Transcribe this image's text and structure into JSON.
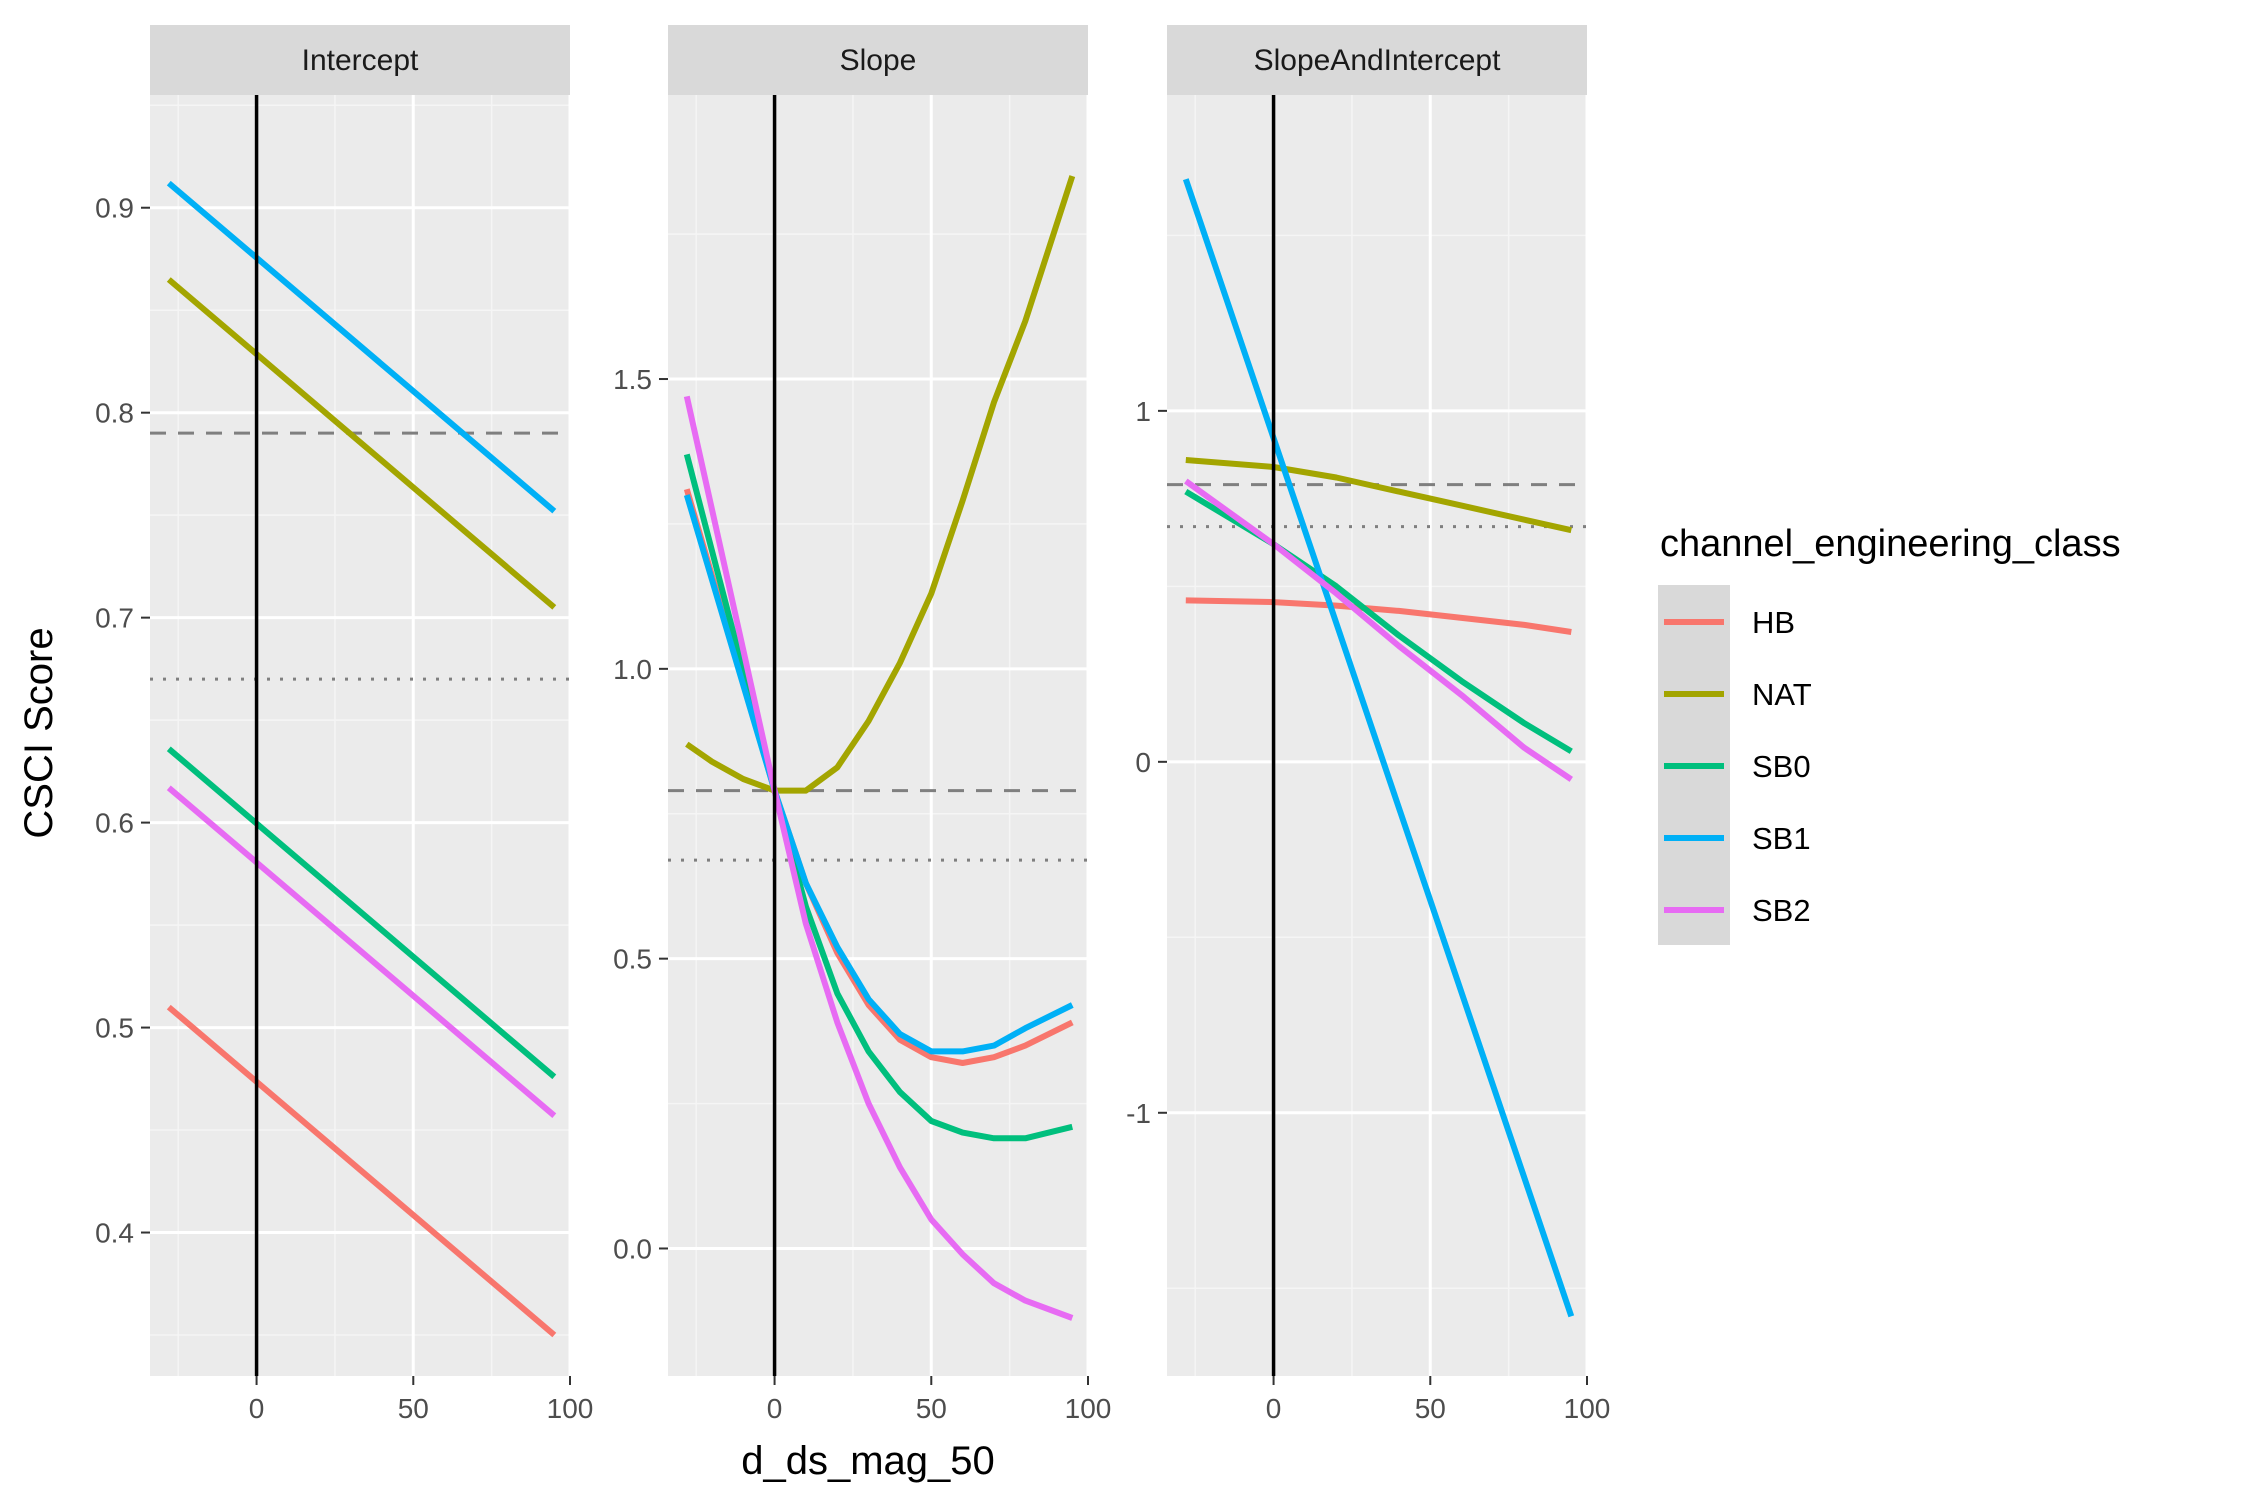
{
  "chart_data": {
    "type": "line",
    "facet_variable": "model",
    "xlabel": "d_ds_mag_50",
    "ylabel": "CSCI Score",
    "legend": {
      "title": "channel_engineering_class",
      "placement": "right",
      "entries": [
        {
          "name": "HB",
          "color": "#F8766D"
        },
        {
          "name": "NAT",
          "color": "#A3A500"
        },
        {
          "name": "SB0",
          "color": "#00BF7D"
        },
        {
          "name": "SB1",
          "color": "#00B0F6"
        },
        {
          "name": "SB2",
          "color": "#E76BF3"
        }
      ]
    },
    "reference_lines": {
      "vertical_x": 0,
      "dashed_y": 0.79,
      "dotted_y": 0.67
    },
    "x_ticks": [
      0,
      50,
      100
    ],
    "xlim": [
      -34,
      100
    ],
    "grid": true,
    "panels": [
      {
        "name": "Intercept",
        "ylim": [
          0.33,
          0.955
        ],
        "y_ticks": [
          0.4,
          0.5,
          0.6,
          0.7,
          0.8,
          0.9
        ],
        "y_tick_labels": [
          "0.4",
          "0.5",
          "0.6",
          "0.7",
          "0.8",
          "0.9"
        ],
        "series": [
          {
            "name": "HB",
            "x": [
              -28,
              95
            ],
            "y": [
              0.51,
              0.35
            ]
          },
          {
            "name": "NAT",
            "x": [
              -28,
              95
            ],
            "y": [
              0.865,
              0.705
            ]
          },
          {
            "name": "SB0",
            "x": [
              -28,
              95
            ],
            "y": [
              0.636,
              0.476
            ]
          },
          {
            "name": "SB1",
            "x": [
              -28,
              95
            ],
            "y": [
              0.912,
              0.752
            ]
          },
          {
            "name": "SB2",
            "x": [
              -28,
              95
            ],
            "y": [
              0.617,
              0.457
            ]
          }
        ]
      },
      {
        "name": "Slope",
        "ylim": [
          -0.22,
          1.99
        ],
        "y_ticks": [
          0,
          0.5,
          1,
          1.5
        ],
        "y_tick_labels": [
          "0.0",
          "0.5",
          "1.0",
          "1.5"
        ],
        "series": [
          {
            "name": "HB",
            "x": [
              -28,
              0,
              10,
              20,
              30,
              40,
              50,
              60,
              70,
              80,
              95
            ],
            "y": [
              1.31,
              0.79,
              0.63,
              0.51,
              0.42,
              0.36,
              0.33,
              0.32,
              0.33,
              0.35,
              0.39
            ]
          },
          {
            "name": "NAT",
            "x": [
              -28,
              -20,
              -10,
              0,
              10,
              20,
              30,
              40,
              50,
              60,
              70,
              80,
              95
            ],
            "y": [
              0.87,
              0.84,
              0.81,
              0.79,
              0.79,
              0.83,
              0.91,
              1.01,
              1.13,
              1.29,
              1.46,
              1.6,
              1.85
            ]
          },
          {
            "name": "SB0",
            "x": [
              -28,
              0,
              10,
              20,
              30,
              40,
              50,
              60,
              70,
              80,
              95
            ],
            "y": [
              1.37,
              0.79,
              0.59,
              0.44,
              0.34,
              0.27,
              0.22,
              0.2,
              0.19,
              0.19,
              0.21
            ]
          },
          {
            "name": "SB1",
            "x": [
              -28,
              0,
              10,
              20,
              30,
              40,
              50,
              60,
              70,
              80,
              95
            ],
            "y": [
              1.3,
              0.79,
              0.63,
              0.52,
              0.43,
              0.37,
              0.34,
              0.34,
              0.35,
              0.38,
              0.42
            ]
          },
          {
            "name": "SB2",
            "x": [
              -28,
              0,
              10,
              20,
              30,
              40,
              50,
              60,
              70,
              80,
              95
            ],
            "y": [
              1.47,
              0.79,
              0.56,
              0.39,
              0.25,
              0.14,
              0.05,
              -0.01,
              -0.06,
              -0.09,
              -0.12
            ]
          }
        ]
      },
      {
        "name": "SlopeAndIntercept",
        "ylim": [
          -1.75,
          1.9
        ],
        "y_ticks": [
          -1,
          0,
          1
        ],
        "y_tick_labels": [
          "-1",
          "0",
          "1"
        ],
        "series": [
          {
            "name": "HB",
            "x": [
              -28,
              0,
              20,
              40,
              60,
              80,
              95
            ],
            "y": [
              0.46,
              0.455,
              0.445,
              0.43,
              0.41,
              0.39,
              0.37
            ]
          },
          {
            "name": "NAT",
            "x": [
              -28,
              0,
              20,
              40,
              60,
              80,
              95
            ],
            "y": [
              0.86,
              0.84,
              0.81,
              0.77,
              0.73,
              0.69,
              0.66
            ]
          },
          {
            "name": "SB0",
            "x": [
              -28,
              0,
              20,
              40,
              60,
              80,
              95
            ],
            "y": [
              0.77,
              0.62,
              0.5,
              0.36,
              0.23,
              0.11,
              0.03
            ]
          },
          {
            "name": "SB1",
            "x": [
              -28,
              95
            ],
            "y": [
              1.66,
              -1.58
            ]
          },
          {
            "name": "SB2",
            "x": [
              -28,
              0,
              20,
              40,
              60,
              80,
              95
            ],
            "y": [
              0.8,
              0.62,
              0.48,
              0.33,
              0.19,
              0.04,
              -0.05
            ]
          }
        ]
      }
    ]
  }
}
